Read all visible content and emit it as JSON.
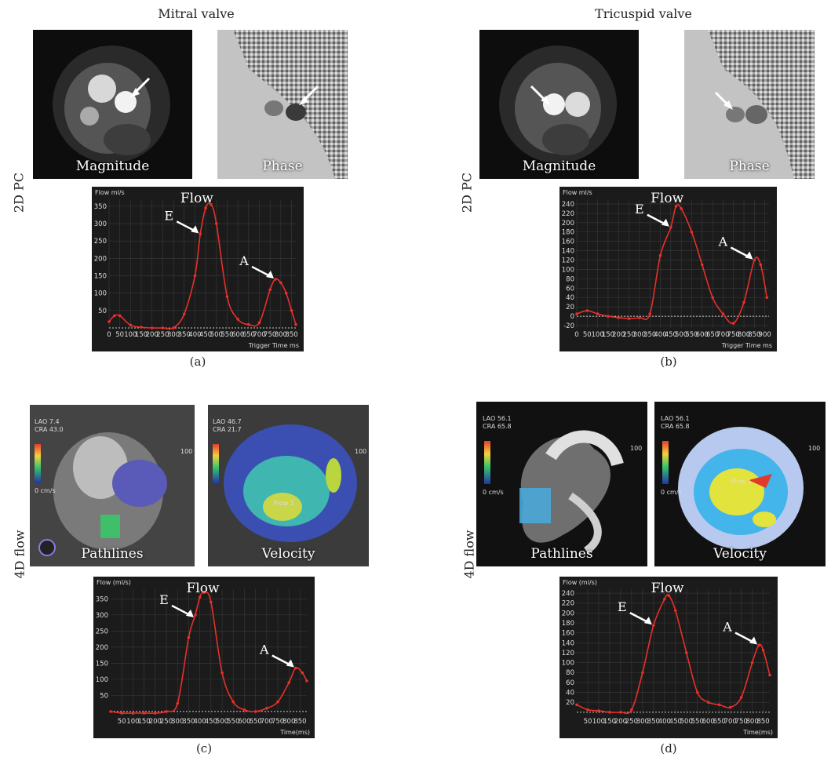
{
  "columns": [
    "Mitral valve",
    "Tricuspid valve"
  ],
  "rows": [
    "2D PC",
    "4D flow"
  ],
  "panel_labels": [
    "(a)",
    "(b)",
    "(c)",
    "(d)"
  ],
  "image_labels": {
    "magnitude": "Magnitude",
    "phase": "Phase",
    "pathlines": "Pathlines",
    "velocity": "Velocity"
  },
  "overlay_text": {
    "a_lao": "LAO 7.4",
    "a_cra": "CRA 43.0",
    "b_lao": "LAO 46.7",
    "b_cra": "CRA 21.7",
    "c_lao": "LAO 56.1",
    "c_cra": "CRA 65.8",
    "d_lao": "LAO 56.1",
    "d_cra": "CRA 65.8",
    "scale_max": "100",
    "scale_min": "0 cm/s",
    "flow_label": "Flow 1"
  },
  "colors": {
    "background": "#1b1b1b",
    "curve": "#e8302a",
    "grid": "#3a3a3a",
    "arrow": "#ffffff"
  },
  "chart_data": [
    {
      "panel": "(a)",
      "type": "line",
      "ylabel": "Flow ml/s",
      "xlabel": "Trigger Time ms",
      "title": "Flow",
      "x_ticks": [
        "0",
        "50",
        "100",
        "150",
        "200",
        "250",
        "300",
        "350",
        "400",
        "450",
        "500",
        "550",
        "600",
        "650",
        "700",
        "750",
        "800",
        "850"
      ],
      "y_ticks": [
        "50",
        "100",
        "150",
        "200",
        "250",
        "300",
        "350"
      ],
      "xlim": [
        0,
        870
      ],
      "ylim": [
        0,
        370
      ],
      "x": [
        0,
        25,
        50,
        100,
        150,
        200,
        250,
        300,
        350,
        400,
        425,
        450,
        475,
        500,
        550,
        600,
        650,
        700,
        750,
        775,
        800,
        825,
        850,
        870
      ],
      "y": [
        18,
        35,
        35,
        8,
        2,
        0,
        0,
        0,
        40,
        150,
        270,
        345,
        355,
        300,
        90,
        25,
        10,
        15,
        110,
        140,
        130,
        100,
        50,
        10
      ],
      "annotations": [
        {
          "text": "E",
          "x": 425,
          "y": 270
        },
        {
          "text": "A",
          "x": 775,
          "y": 140
        }
      ]
    },
    {
      "panel": "(b)",
      "type": "line",
      "ylabel": "Flow ml/s",
      "xlabel": "Trigger Time ms",
      "title": "Flow",
      "x_ticks": [
        "0",
        "50",
        "100",
        "150",
        "200",
        "250",
        "300",
        "350",
        "400",
        "450",
        "500",
        "550",
        "600",
        "650",
        "700",
        "750",
        "800",
        "850",
        "900"
      ],
      "y_ticks": [
        "-20",
        "0",
        "20",
        "40",
        "60",
        "80",
        "100",
        "120",
        "140",
        "160",
        "180",
        "200",
        "220",
        "240"
      ],
      "xlim": [
        0,
        920
      ],
      "ylim": [
        -25,
        250
      ],
      "x": [
        0,
        50,
        100,
        150,
        200,
        250,
        300,
        350,
        400,
        450,
        475,
        500,
        550,
        600,
        650,
        700,
        750,
        800,
        850,
        880,
        910
      ],
      "y": [
        5,
        12,
        5,
        0,
        -3,
        -5,
        -3,
        5,
        130,
        190,
        235,
        230,
        180,
        110,
        40,
        5,
        -15,
        30,
        120,
        110,
        40
      ],
      "annotations": [
        {
          "text": "E",
          "x": 450,
          "y": 190
        },
        {
          "text": "A",
          "x": 850,
          "y": 120
        }
      ]
    },
    {
      "panel": "(c)",
      "type": "line",
      "ylabel": "Flow (ml/s)",
      "xlabel": "Time(ms)",
      "title": "Flow",
      "x_ticks": [
        "50",
        "100",
        "150",
        "200",
        "250",
        "300",
        "350",
        "400",
        "450",
        "500",
        "550",
        "600",
        "650",
        "700",
        "750",
        "800",
        "850"
      ],
      "y_ticks": [
        "50",
        "100",
        "150",
        "200",
        "250",
        "300",
        "350"
      ],
      "xlim": [
        0,
        880
      ],
      "ylim": [
        -10,
        380
      ],
      "x": [
        0,
        50,
        100,
        150,
        200,
        250,
        300,
        350,
        380,
        400,
        420,
        450,
        500,
        550,
        600,
        650,
        700,
        750,
        800,
        830,
        860,
        880
      ],
      "y": [
        0,
        -5,
        -5,
        -5,
        -5,
        0,
        25,
        230,
        300,
        355,
        370,
        340,
        120,
        30,
        5,
        0,
        10,
        30,
        90,
        135,
        120,
        95
      ],
      "annotations": [
        {
          "text": "E",
          "x": 380,
          "y": 290
        },
        {
          "text": "A",
          "x": 830,
          "y": 135
        }
      ]
    },
    {
      "panel": "(d)",
      "type": "line",
      "ylabel": "Flow (ml/s)",
      "xlabel": "Time(ms)",
      "title": "Flow",
      "x_ticks": [
        "50",
        "100",
        "150",
        "200",
        "250",
        "300",
        "350",
        "400",
        "450",
        "500",
        "550",
        "600",
        "650",
        "700",
        "750",
        "800",
        "850"
      ],
      "y_ticks": [
        "20",
        "40",
        "60",
        "80",
        "100",
        "120",
        "140",
        "160",
        "180",
        "200",
        "220",
        "240"
      ],
      "xlim": [
        0,
        880
      ],
      "ylim": [
        -5,
        248
      ],
      "x": [
        0,
        50,
        100,
        150,
        200,
        250,
        300,
        350,
        400,
        420,
        450,
        500,
        550,
        600,
        650,
        700,
        750,
        800,
        830,
        850,
        880
      ],
      "y": [
        15,
        5,
        3,
        0,
        0,
        5,
        80,
        175,
        228,
        235,
        205,
        120,
        40,
        20,
        15,
        10,
        30,
        100,
        135,
        125,
        75
      ],
      "annotations": [
        {
          "text": "E",
          "x": 350,
          "y": 175
        },
        {
          "text": "A",
          "x": 830,
          "y": 135
        }
      ]
    }
  ]
}
